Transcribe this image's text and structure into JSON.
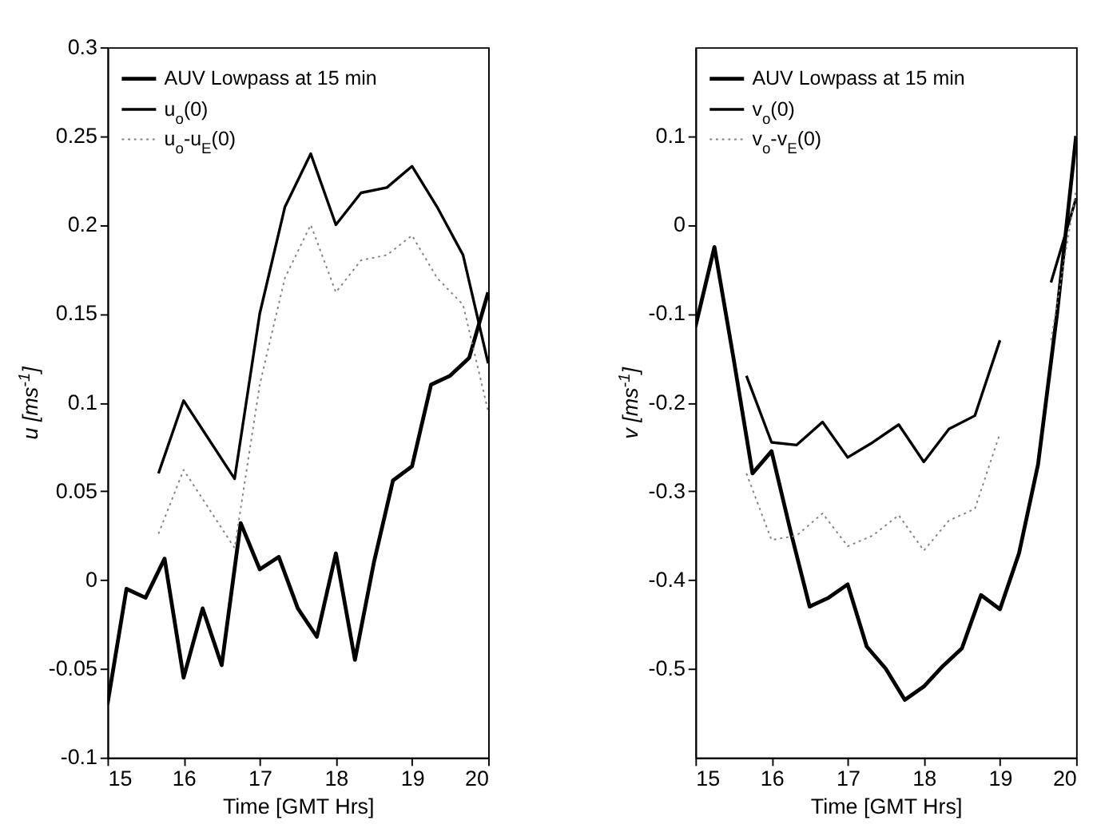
{
  "chart_data": [
    {
      "type": "line",
      "xlabel": "Time [GMT Hrs]",
      "ylabel": "u [ms$^{-1}$]",
      "xlim": [
        15,
        20
      ],
      "xticks": [
        15,
        16,
        17,
        18,
        19,
        20
      ],
      "ylim": [
        -0.1,
        0.3
      ],
      "yticks": [
        -0.1,
        -0.05,
        0,
        0.05,
        0.1,
        0.15,
        0.2,
        0.25,
        0.3
      ],
      "legend": "top left",
      "series": [
        {
          "name": "AUV Lowpass at 15 min",
          "color": "#000000",
          "line_style": "solid",
          "x": [
            15,
            15.25,
            15.5,
            15.75,
            16,
            16.25,
            16.5,
            16.75,
            17,
            17.25,
            17.5,
            17.75,
            18,
            18.25,
            18.5,
            18.75,
            19,
            19.25,
            19.5,
            19.75,
            20
          ],
          "values": [
            -0.07,
            -0.005,
            -0.01,
            0.012,
            -0.055,
            -0.016,
            -0.048,
            0.032,
            0.006,
            0.013,
            -0.016,
            -0.032,
            0.015,
            -0.045,
            0.01,
            0.056,
            0.064,
            0.11,
            0.115,
            0.125,
            0.162
          ]
        },
        {
          "name": "u$_{o}$(0)",
          "color": "#000000",
          "line_style": "solid",
          "x": [
            15.67,
            16,
            16.67,
            17,
            17.33,
            17.67,
            18,
            18.33,
            18.67,
            19,
            19.33,
            19.67,
            20
          ],
          "values": [
            0.06,
            0.101,
            0.057,
            0.15,
            0.21,
            0.24,
            0.2,
            0.218,
            0.221,
            0.233,
            0.21,
            0.183,
            0.122
          ]
        },
        {
          "name": "u$_{o}$-u$_{E}$(0)",
          "color": "#808080",
          "line_style": "dotted",
          "x": [
            15.67,
            16,
            16.67,
            17,
            17.33,
            17.67,
            18,
            18.33,
            18.67,
            19,
            19.33,
            19.67,
            20
          ],
          "values": [
            0.026,
            0.062,
            0.018,
            0.11,
            0.17,
            0.2,
            0.162,
            0.18,
            0.183,
            0.194,
            0.17,
            0.155,
            0.095
          ]
        }
      ]
    },
    {
      "type": "line",
      "xlabel": "Time [GMT Hrs]",
      "ylabel": "v [ms$^{-1}$]",
      "xlim": [
        15,
        20
      ],
      "xticks": [
        15,
        16,
        17,
        18,
        19,
        20
      ],
      "ylim": [
        -0.6,
        0.2
      ],
      "yticks": [
        -0.5,
        -0.4,
        -0.3,
        -0.2,
        -0.1,
        0,
        0.1
      ],
      "legend": "top left",
      "series": [
        {
          "name": "AUV Lowpass at 15 min",
          "color": "#000000",
          "line_style": "solid",
          "x": [
            15,
            15.25,
            15.5,
            15.75,
            16,
            16.25,
            16.5,
            16.75,
            17,
            17.25,
            17.5,
            17.75,
            18,
            18.25,
            18.5,
            18.75,
            19,
            19.25,
            19.5,
            19.75,
            20
          ],
          "values": [
            -0.115,
            -0.025,
            -0.15,
            -0.28,
            -0.255,
            -0.345,
            -0.43,
            -0.42,
            -0.405,
            -0.475,
            -0.5,
            -0.535,
            -0.52,
            -0.497,
            -0.477,
            -0.417,
            -0.433,
            -0.37,
            -0.27,
            -0.1,
            0.1
          ]
        },
        {
          "name": "v$_{o}$(0)",
          "color": "#000000",
          "line_style": "solid",
          "x": [
            15.67,
            16,
            16.33,
            16.67,
            17,
            17.33,
            17.67,
            18,
            18.33,
            18.67,
            19,
            19.33,
            19.67,
            20
          ],
          "values": [
            -0.17,
            -0.245,
            -0.248,
            -0.222,
            -0.262,
            -0.245,
            -0.225,
            -0.267,
            -0.23,
            -0.215,
            -0.13,
            null,
            -0.065,
            0.03
          ]
        },
        {
          "name": "v$_{o}$-v$_{E}$(0)",
          "color": "#808080",
          "line_style": "dotted",
          "x": [
            15.67,
            16,
            16.33,
            16.67,
            17,
            17.33,
            17.67,
            18,
            18.33,
            18.67,
            19,
            19.33,
            19.67,
            20
          ],
          "values": [
            -0.28,
            -0.355,
            -0.35,
            -0.325,
            -0.362,
            -0.35,
            -0.327,
            -0.367,
            -0.333,
            -0.32,
            -0.235,
            null,
            -0.13,
            0.04
          ]
        }
      ]
    }
  ]
}
